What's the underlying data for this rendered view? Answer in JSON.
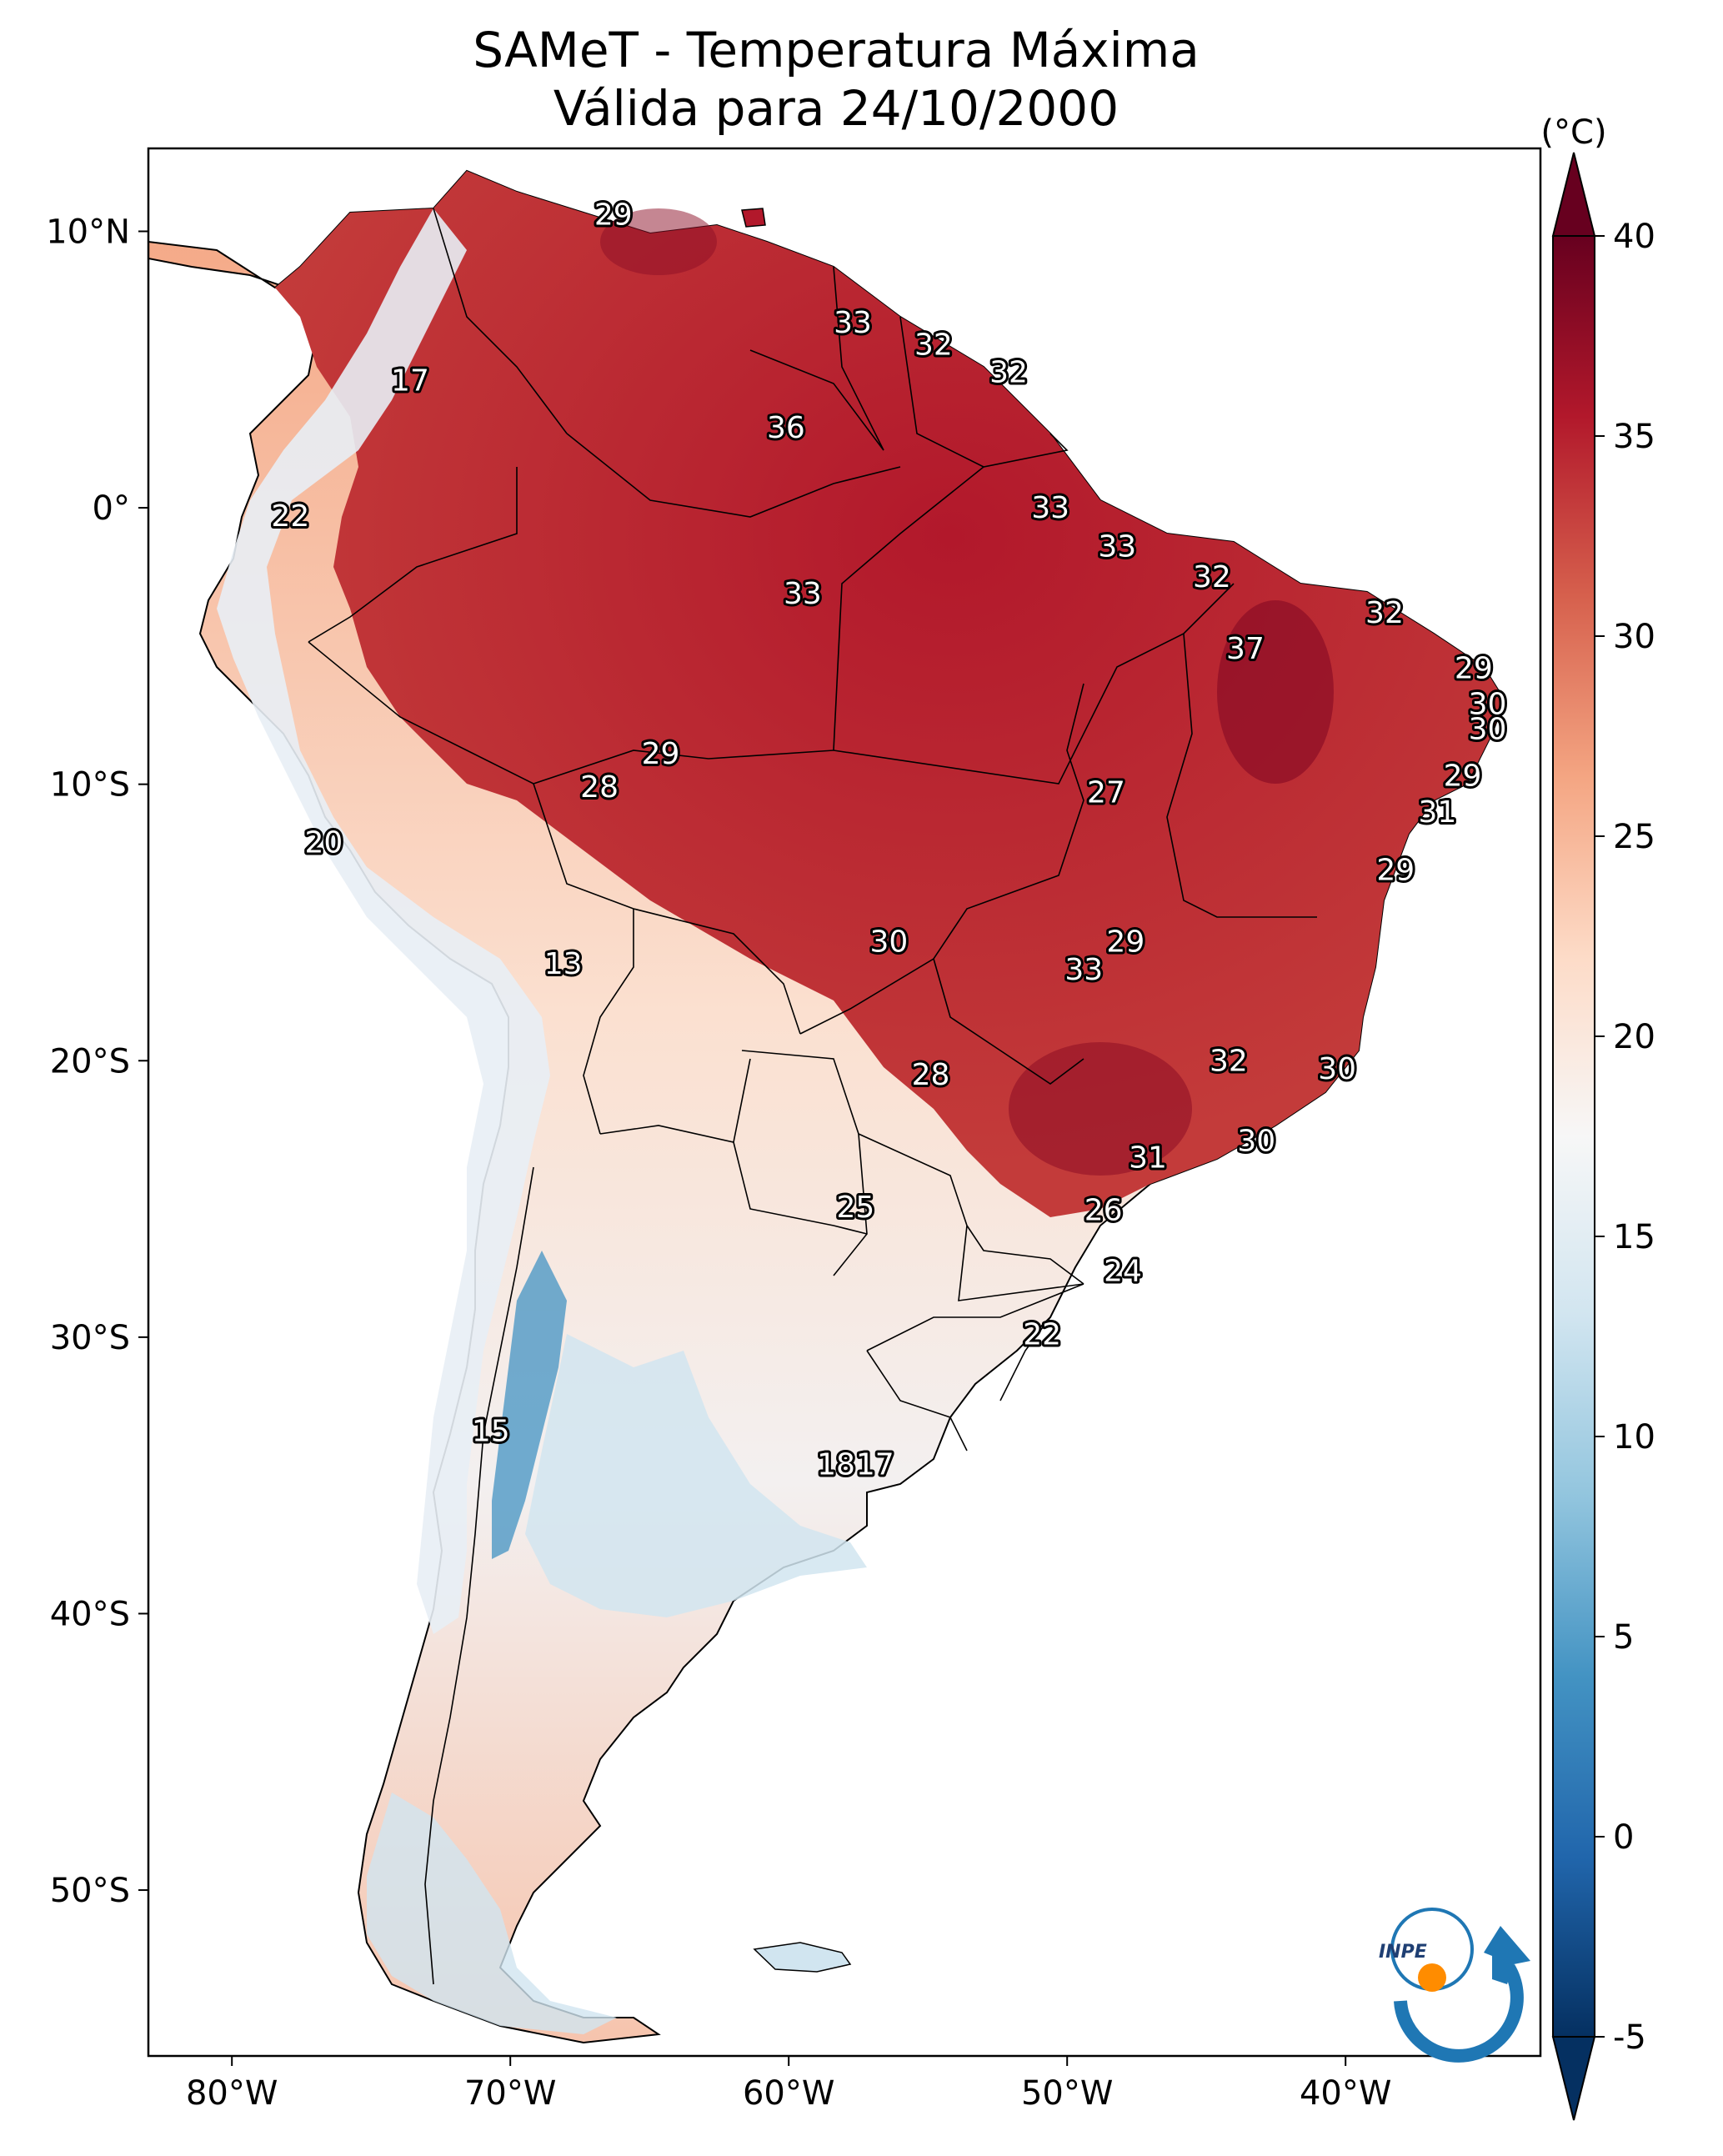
{
  "title": {
    "line1": "SAMeT - Temperatura Máxima",
    "line2": "Válida para 24/10/2000"
  },
  "map": {
    "lon_range": [
      -83,
      -33
    ],
    "lat_range": [
      -56,
      13
    ],
    "lon_ticks": [
      {
        "value": -80,
        "label": "80°W"
      },
      {
        "value": -70,
        "label": "70°W"
      },
      {
        "value": -60,
        "label": "60°W"
      },
      {
        "value": -50,
        "label": "50°W"
      },
      {
        "value": -40,
        "label": "40°W"
      }
    ],
    "lat_ticks": [
      {
        "value": 10,
        "label": "10°N"
      },
      {
        "value": 0,
        "label": "0°"
      },
      {
        "value": -10,
        "label": "10°S"
      },
      {
        "value": -20,
        "label": "20°S"
      },
      {
        "value": -30,
        "label": "30°S"
      },
      {
        "value": -40,
        "label": "40°S"
      },
      {
        "value": -50,
        "label": "50°S"
      }
    ],
    "station_labels": [
      {
        "lon": -66.3,
        "lat": 10.6,
        "value": "29"
      },
      {
        "lon": -57.7,
        "lat": 6.7,
        "value": "33"
      },
      {
        "lon": -54.8,
        "lat": 5.9,
        "value": "32"
      },
      {
        "lon": -52.1,
        "lat": 4.9,
        "value": "32"
      },
      {
        "lon": -73.6,
        "lat": 4.6,
        "value": "17"
      },
      {
        "lon": -60.1,
        "lat": 2.9,
        "value": "36"
      },
      {
        "lon": -50.6,
        "lat": 0.0,
        "value": "33"
      },
      {
        "lon": -77.9,
        "lat": -0.3,
        "value": "22"
      },
      {
        "lon": -48.2,
        "lat": -1.4,
        "value": "33"
      },
      {
        "lon": -59.5,
        "lat": -3.1,
        "value": "33"
      },
      {
        "lon": -44.8,
        "lat": -2.5,
        "value": "32"
      },
      {
        "lon": -38.6,
        "lat": -3.8,
        "value": "32"
      },
      {
        "lon": -43.6,
        "lat": -5.1,
        "value": "37"
      },
      {
        "lon": -35.4,
        "lat": -5.8,
        "value": "29"
      },
      {
        "lon": -34.9,
        "lat": -7.1,
        "value": "30"
      },
      {
        "lon": -34.9,
        "lat": -8.0,
        "value": "30"
      },
      {
        "lon": -64.6,
        "lat": -8.9,
        "value": "29"
      },
      {
        "lon": -35.8,
        "lat": -9.7,
        "value": "29"
      },
      {
        "lon": -66.8,
        "lat": -10.1,
        "value": "28"
      },
      {
        "lon": -48.6,
        "lat": -10.3,
        "value": "27"
      },
      {
        "lon": -36.7,
        "lat": -11.0,
        "value": "31"
      },
      {
        "lon": -76.7,
        "lat": -12.1,
        "value": "20"
      },
      {
        "lon": -38.2,
        "lat": -13.1,
        "value": "29"
      },
      {
        "lon": -56.4,
        "lat": -15.7,
        "value": "30"
      },
      {
        "lon": -47.9,
        "lat": -15.7,
        "value": "29"
      },
      {
        "lon": -49.4,
        "lat": -16.7,
        "value": "33"
      },
      {
        "lon": -68.1,
        "lat": -16.5,
        "value": "13"
      },
      {
        "lon": -44.2,
        "lat": -20.0,
        "value": "32"
      },
      {
        "lon": -40.3,
        "lat": -20.3,
        "value": "30"
      },
      {
        "lon": -54.9,
        "lat": -20.5,
        "value": "28"
      },
      {
        "lon": -43.2,
        "lat": -22.9,
        "value": "30"
      },
      {
        "lon": -47.1,
        "lat": -23.5,
        "value": "31"
      },
      {
        "lon": -57.6,
        "lat": -25.3,
        "value": "25"
      },
      {
        "lon": -48.7,
        "lat": -25.4,
        "value": "26"
      },
      {
        "lon": -48.0,
        "lat": -27.6,
        "value": "24"
      },
      {
        "lon": -50.9,
        "lat": -29.9,
        "value": "22"
      },
      {
        "lon": -70.7,
        "lat": -33.4,
        "value": "15"
      },
      {
        "lon": -58.3,
        "lat": -34.6,
        "value": "18"
      },
      {
        "lon": -56.9,
        "lat": -34.6,
        "value": "17"
      }
    ]
  },
  "colorbar": {
    "unit": "(°C)",
    "range": [
      -5,
      40
    ],
    "ticks": [
      {
        "value": 40,
        "label": "40"
      },
      {
        "value": 35,
        "label": "35"
      },
      {
        "value": 30,
        "label": "30"
      },
      {
        "value": 25,
        "label": "25"
      },
      {
        "value": 20,
        "label": "20"
      },
      {
        "value": 15,
        "label": "15"
      },
      {
        "value": 10,
        "label": "10"
      },
      {
        "value": 5,
        "label": "5"
      },
      {
        "value": 0,
        "label": "0"
      },
      {
        "value": -5,
        "label": "-5"
      }
    ],
    "colors": [
      "#053061",
      "#2166ac",
      "#4393c3",
      "#92c5de",
      "#d1e5f0",
      "#f7f7f7",
      "#fddbc7",
      "#f4a582",
      "#d6604d",
      "#b2182b",
      "#67001f"
    ]
  },
  "logo": {
    "text": "INPE",
    "colors": {
      "blue": "#1f77b4",
      "orange": "#ff8c00"
    }
  }
}
